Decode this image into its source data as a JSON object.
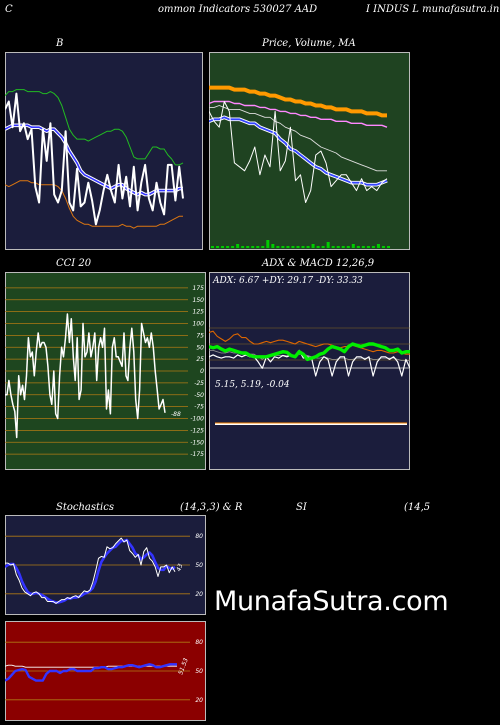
{
  "header": {
    "left_char": "C",
    "title_part1": "ommon  Indicators 530027 AAD",
    "title_part2": "I INDUS L  munafasutra.in"
  },
  "watermark": "MunafaSutra.com",
  "chart_data": [
    {
      "id": "bollinger",
      "type": "line",
      "title": "B",
      "series": [
        {
          "role": "upper",
          "color": "#22bb22",
          "values": [
            78,
            80,
            80,
            81,
            81,
            81,
            80,
            80,
            80,
            80,
            79,
            79,
            80,
            79,
            77,
            73,
            67,
            61,
            58,
            56,
            56,
            56,
            55,
            56,
            57,
            58,
            59,
            60,
            60,
            61,
            61,
            60,
            57,
            52,
            47,
            46,
            46,
            46,
            49,
            52,
            52,
            51,
            51,
            48,
            46,
            43,
            43,
            44
          ]
        },
        {
          "role": "middle",
          "color": "#3333ff",
          "values": [
            61,
            62,
            63,
            63,
            63,
            63,
            63,
            62,
            62,
            62,
            61,
            60,
            61,
            61,
            59,
            57,
            54,
            50,
            47,
            44,
            40,
            38,
            37,
            36,
            35,
            34,
            33,
            32,
            31,
            32,
            33,
            33,
            31,
            30,
            29,
            28,
            29,
            28,
            28,
            29,
            30,
            30,
            30,
            30,
            30,
            30,
            31,
            31
          ]
        },
        {
          "role": "lower",
          "color": "#dd7711",
          "values": [
            33,
            32,
            33,
            34,
            35,
            35,
            35,
            34,
            34,
            33,
            33,
            33,
            33,
            33,
            32,
            30,
            26,
            21,
            17,
            15,
            14,
            13,
            13,
            12,
            12,
            12,
            12,
            12,
            12,
            12,
            12,
            13,
            12,
            12,
            11,
            12,
            12,
            12,
            12,
            12,
            12,
            13,
            13,
            14,
            15,
            16,
            17,
            17
          ]
        },
        {
          "role": "price",
          "color": "#ffffff",
          "values": [
            71,
            75,
            62,
            79,
            60,
            64,
            56,
            61,
            32,
            24,
            61,
            45,
            64,
            28,
            24,
            30,
            60,
            24,
            20,
            41,
            22,
            24,
            34,
            25,
            13,
            20,
            30,
            38,
            30,
            24,
            43,
            26,
            37,
            22,
            42,
            20,
            34,
            43,
            26,
            20,
            34,
            24,
            18,
            43,
            43,
            25,
            42,
            26
          ]
        }
      ]
    },
    {
      "id": "price_volume_ma",
      "type": "line",
      "title": "Price,  Volume,  MA",
      "series": [
        {
          "role": "ma_thick",
          "color": "#ff9900",
          "values": [
            82,
            82,
            82,
            82,
            82,
            81,
            81,
            81,
            80,
            80,
            79,
            79,
            78,
            78,
            77,
            76,
            76,
            75,
            75,
            74,
            74,
            73,
            73,
            72,
            72,
            71,
            71,
            71,
            70,
            70,
            70,
            69,
            69,
            69,
            68,
            68
          ]
        },
        {
          "role": "ma_mid",
          "color": "#ff88ff",
          "values": [
            74,
            75,
            75,
            75,
            75,
            74,
            74,
            73,
            73,
            73,
            72,
            72,
            71,
            71,
            70,
            70,
            69,
            69,
            68,
            68,
            67,
            67,
            66,
            66,
            66,
            65,
            65,
            65,
            64,
            64,
            64,
            63,
            63,
            63,
            63,
            62
          ]
        },
        {
          "role": "ma_blue",
          "color": "#3344ff",
          "values": [
            65,
            66,
            66,
            67,
            66,
            66,
            66,
            65,
            64,
            64,
            62,
            61,
            60,
            59,
            56,
            54,
            51,
            50,
            48,
            46,
            44,
            42,
            41,
            39,
            38,
            37,
            36,
            35,
            34,
            34,
            34,
            33,
            33,
            33,
            34,
            35
          ]
        },
        {
          "role": "ma_thin",
          "color": "#dddddd",
          "values": [
            72,
            72,
            73,
            72,
            71,
            71,
            71,
            70,
            69,
            69,
            68,
            67,
            67,
            65,
            64,
            62,
            61,
            60,
            58,
            57,
            56,
            54,
            52,
            51,
            50,
            49,
            47,
            46,
            45,
            44,
            43,
            42,
            41,
            40,
            40,
            40
          ]
        },
        {
          "role": "price",
          "color": "#ffffff",
          "values": [
            70,
            65,
            62,
            75,
            70,
            44,
            42,
            40,
            45,
            52,
            38,
            48,
            42,
            70,
            40,
            45,
            62,
            35,
            38,
            24,
            30,
            48,
            50,
            44,
            32,
            35,
            38,
            38,
            34,
            30,
            36,
            30,
            32,
            30,
            34,
            36
          ]
        },
        {
          "role": "volume",
          "color": "#00cc00",
          "values": [
            0,
            0,
            0,
            0,
            0,
            1,
            0,
            0,
            0,
            0,
            0,
            3,
            1,
            0,
            0,
            0,
            0,
            0,
            0,
            0,
            1,
            0,
            0,
            2,
            0,
            0,
            0,
            0,
            1,
            0,
            0,
            0,
            0,
            1,
            0,
            0
          ]
        }
      ]
    },
    {
      "id": "cci",
      "type": "line",
      "title": "CCI 20",
      "ylim": [
        -200,
        200
      ],
      "yticks": [
        175,
        150,
        125,
        100,
        75,
        50,
        25,
        0,
        -25,
        -50,
        -75,
        -100,
        -125,
        -150,
        -175
      ],
      "last_label": "-88",
      "series": [
        {
          "role": "cci",
          "color": "#ffffff",
          "values": [
            -50,
            -50,
            -20,
            -50,
            -70,
            -85,
            -140,
            -10,
            -50,
            -30,
            -60,
            -10,
            70,
            30,
            40,
            -10,
            40,
            80,
            50,
            60,
            60,
            50,
            10,
            -50,
            -70,
            0,
            -90,
            -100,
            -10,
            50,
            30,
            70,
            120,
            60,
            110,
            30,
            -20,
            70,
            -60,
            -40,
            100,
            30,
            40,
            80,
            30,
            50,
            80,
            -20,
            50,
            70,
            50,
            90,
            -80,
            -40,
            -90,
            50,
            70,
            30,
            30,
            20,
            10,
            80,
            -10,
            -20,
            50,
            90,
            40,
            -60,
            -100,
            -40,
            100,
            80,
            60,
            70,
            50,
            80,
            50,
            0,
            -40,
            -80,
            -70,
            -60,
            -88
          ]
        }
      ]
    },
    {
      "id": "adx",
      "type": "line",
      "title": "ADX  & MACD 12,26,9",
      "header_label": "ADX: 6.67 +DY: 29.17 -DY: 33.33",
      "ylim": [
        0,
        100
      ],
      "series": [
        {
          "role": "adx",
          "color": "#00ee00",
          "values": [
            46,
            44,
            46,
            42,
            39,
            42,
            40,
            38,
            36,
            36,
            32,
            30,
            30,
            30,
            30,
            32,
            34,
            36,
            38,
            37,
            32,
            30,
            38,
            34,
            26,
            28,
            30,
            34,
            36,
            42,
            46,
            44,
            42,
            38,
            46,
            50,
            48,
            46,
            48,
            50,
            50,
            48,
            46,
            44,
            40,
            40,
            42,
            36,
            38,
            38
          ]
        },
        {
          "role": "plus_di",
          "color": "#dd6600",
          "values": [
            68,
            70,
            62,
            58,
            54,
            58,
            64,
            66,
            60,
            60,
            54,
            50,
            50,
            52,
            54,
            52,
            54,
            56,
            56,
            54,
            52,
            50,
            54,
            52,
            50,
            48,
            46,
            48,
            50,
            50,
            48,
            46,
            44,
            46,
            46,
            48,
            46,
            44,
            42,
            40,
            38,
            40,
            40,
            38,
            36,
            36,
            38,
            36,
            34,
            34
          ]
        },
        {
          "role": "minus_di",
          "color": "#ffffff",
          "values": [
            30,
            33,
            30,
            28,
            30,
            30,
            28,
            33,
            30,
            33,
            30,
            30,
            22,
            12,
            30,
            22,
            30,
            28,
            32,
            30,
            33,
            30,
            40,
            28,
            30,
            28,
            0,
            22,
            30,
            26,
            0,
            22,
            30,
            30,
            0,
            22,
            30,
            30,
            26,
            30,
            0,
            22,
            30,
            30,
            26,
            30,
            22,
            0,
            26,
            12
          ]
        },
        {
          "role": "minus_di_shadow",
          "color": "#999999",
          "values": [
            40,
            40,
            38,
            36,
            36,
            38,
            36,
            36,
            34,
            34,
            34,
            34,
            30,
            26,
            30,
            30,
            32,
            32,
            32,
            32,
            32,
            32,
            34,
            34,
            32,
            30,
            28,
            28,
            30,
            28,
            26,
            26,
            28,
            28,
            26,
            26,
            28,
            28,
            28,
            28,
            26,
            26,
            28,
            28,
            28,
            28,
            26,
            24,
            24,
            24
          ]
        }
      ]
    },
    {
      "id": "macd",
      "type": "line",
      "header_label": "5.15,  5.19,  -0.04",
      "series": [
        {
          "role": "macd",
          "color": "#ffffff",
          "values": [
            5.15,
            5.15,
            5.15,
            5.15,
            5.15,
            5.15,
            5.15,
            5.15,
            5.15,
            5.15
          ]
        },
        {
          "role": "signal",
          "color": "#ff8800",
          "values": [
            5.19,
            5.19,
            5.19,
            5.19,
            5.19,
            5.19,
            5.19,
            5.19,
            5.19,
            5.19
          ]
        }
      ]
    },
    {
      "id": "stochastics",
      "type": "line",
      "title_left": "Stochastics",
      "title_mid": "(14,3,3) & R",
      "ylim": [
        0,
        100
      ],
      "yticks": [
        80,
        50,
        20
      ],
      "last_label": "43",
      "series": [
        {
          "role": "k",
          "color": "#ffffff",
          "values": [
            52,
            52,
            50,
            51,
            40,
            34,
            26,
            22,
            20,
            18,
            21,
            22,
            20,
            16,
            16,
            12,
            12,
            12,
            10,
            12,
            14,
            14,
            16,
            15,
            17,
            18,
            16,
            20,
            23,
            22,
            24,
            32,
            44,
            57,
            59,
            58,
            69,
            67,
            68,
            72,
            75,
            78,
            74,
            76,
            65,
            62,
            58,
            61,
            50,
            64,
            68,
            57,
            54,
            48,
            38,
            48,
            48,
            50,
            42,
            48,
            43
          ]
        },
        {
          "role": "d",
          "color": "#3333ff",
          "values": [
            48,
            50,
            51,
            51,
            47,
            41,
            33,
            27,
            22,
            20,
            20,
            21,
            20,
            19,
            17,
            15,
            13,
            12,
            11,
            11,
            12,
            13,
            15,
            15,
            16,
            16,
            17,
            18,
            20,
            21,
            23,
            26,
            33,
            44,
            53,
            58,
            62,
            65,
            68,
            69,
            72,
            75,
            75,
            76,
            72,
            68,
            62,
            60,
            56,
            58,
            61,
            63,
            60,
            53,
            47,
            45,
            45,
            49,
            47,
            46,
            48
          ]
        }
      ]
    },
    {
      "id": "rsi",
      "type": "line",
      "title_left": "SI",
      "title_right": "(14,5",
      "ylim": [
        0,
        100
      ],
      "yticks": [
        80,
        50,
        20
      ],
      "last_label": "51.53",
      "series": [
        {
          "role": "rsi_blue",
          "color": "#3333ff",
          "values": [
            40,
            42,
            46,
            50,
            51,
            52,
            51,
            44,
            42,
            40,
            40,
            40,
            47,
            50,
            50,
            50,
            48,
            50,
            50,
            52,
            52,
            50,
            50,
            50,
            50,
            50,
            53,
            53,
            54,
            54,
            52,
            52,
            53,
            54,
            54,
            55,
            56,
            56,
            55,
            54,
            55,
            56,
            57,
            56,
            54,
            54,
            55,
            56,
            57,
            57,
            57
          ]
        },
        {
          "role": "rsi_white",
          "color": "#ffffff",
          "values": [
            55,
            56,
            56,
            55,
            55,
            55,
            54,
            54,
            54,
            54,
            54,
            54,
            54,
            54,
            54,
            54,
            54,
            54,
            54,
            54,
            54,
            54,
            54,
            54,
            54,
            54,
            54,
            54,
            54,
            54,
            55,
            55,
            55,
            55,
            55,
            55,
            55,
            55,
            55,
            55,
            55,
            55,
            55,
            55,
            55,
            55,
            55,
            55,
            55,
            55,
            55
          ]
        }
      ]
    }
  ]
}
